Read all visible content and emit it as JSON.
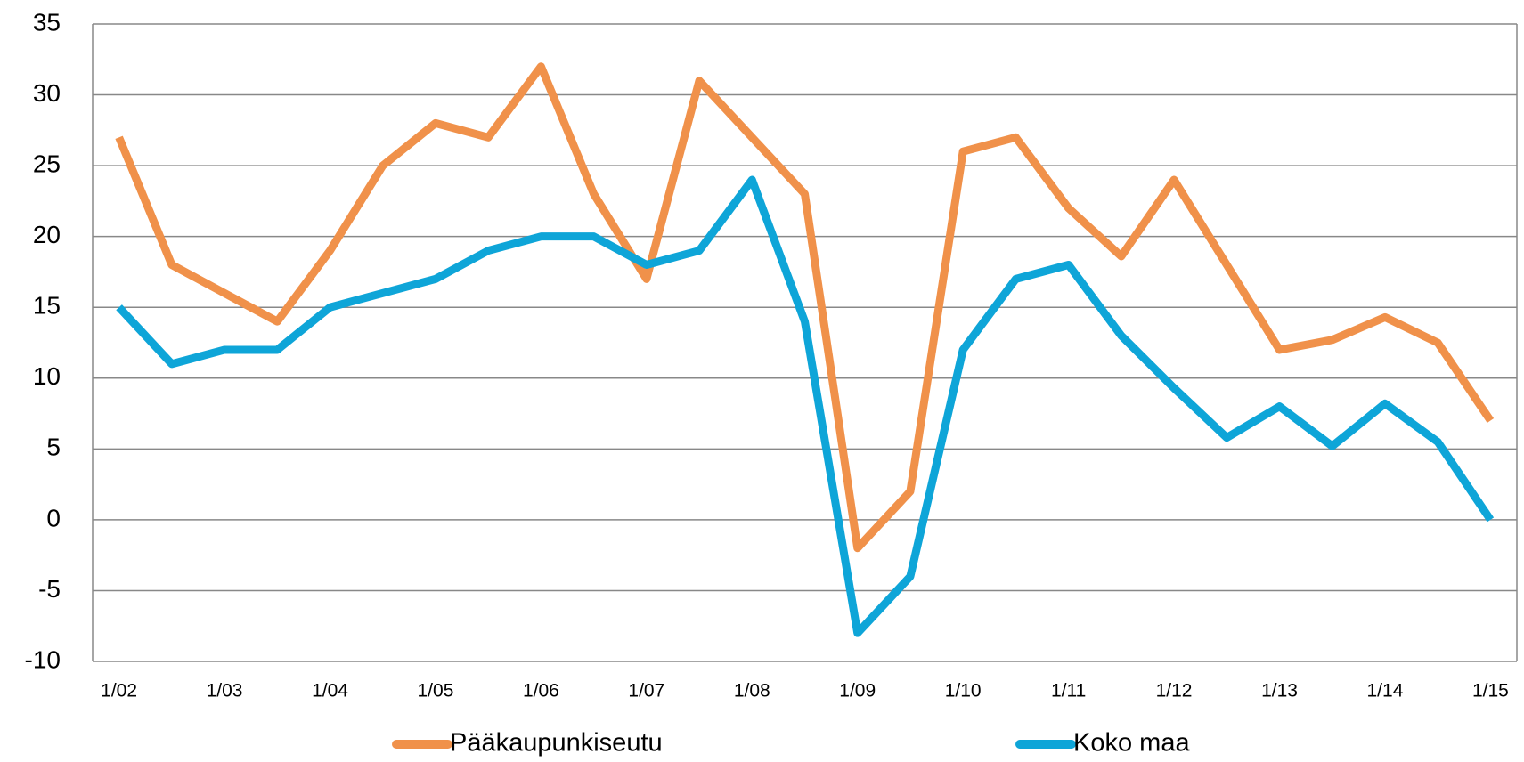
{
  "chart_data": {
    "type": "line",
    "categories": [
      "1/02",
      null,
      "1/03",
      null,
      "1/04",
      null,
      "1/05",
      null,
      "1/06",
      null,
      "1/07",
      null,
      "1/08",
      null,
      "1/09",
      null,
      "1/10",
      null,
      "1/11",
      null,
      "1/12",
      null,
      "1/13",
      null,
      "1/14",
      null,
      "1/15"
    ],
    "series": [
      {
        "name": "Pääkaupunkiseutu",
        "color": "#f0914a",
        "values": [
          27,
          18,
          16,
          14,
          19,
          25,
          28,
          27,
          32,
          23,
          17,
          31,
          27,
          23,
          -2,
          2,
          26,
          27,
          22,
          18.6,
          24,
          18,
          12,
          12.7,
          14.3,
          12.5,
          7
        ]
      },
      {
        "name": "Koko maa",
        "color": "#0ea5d8",
        "values": [
          15,
          11,
          12,
          12,
          15,
          16,
          17,
          19,
          20,
          20,
          18,
          19,
          24,
          14,
          -8,
          -4,
          12,
          17,
          18,
          13,
          9.3,
          5.8,
          8,
          5.2,
          8.2,
          5.5,
          0
        ]
      }
    ],
    "ylim": [
      -10,
      35
    ],
    "yticks": [
      -10,
      -5,
      0,
      5,
      10,
      15,
      20,
      25,
      30,
      35
    ],
    "grid": true,
    "legend": "bottom"
  }
}
